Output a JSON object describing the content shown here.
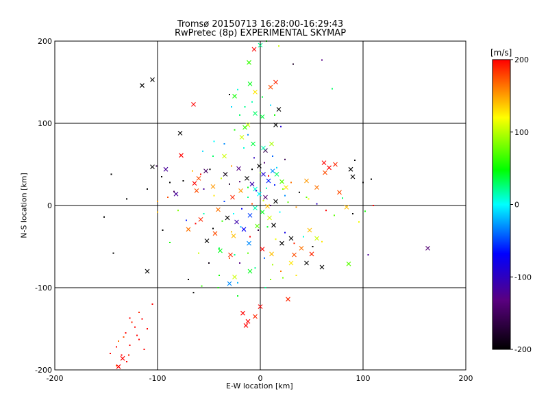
{
  "chart_data": {
    "type": "scatter",
    "title": "Tromsø 20150713 16:28:00-16:29:43",
    "subtitle": "RwPretec (8p) EXPERIMENTAL SKYMAP",
    "xlabel": "E-W location [km]",
    "ylabel": "N-S location [km]",
    "xlim": [
      -200,
      200
    ],
    "ylim": [
      -200,
      200
    ],
    "xticks": [
      -200,
      -100,
      0,
      100,
      200
    ],
    "yticks": [
      -200,
      -100,
      0,
      100,
      200
    ],
    "grid": true,
    "markers": [
      "x",
      "dot"
    ],
    "colorbar": {
      "label": "[m/s]",
      "range": [
        -200,
        200
      ],
      "ticks": [
        200,
        100,
        0,
        -100,
        -200
      ],
      "colormap": [
        "#000000",
        "#5a0080",
        "#0000ff",
        "#00ffff",
        "#00ff00",
        "#ffff00",
        "#ff0000"
      ]
    },
    "series": [
      {
        "values": [
          [
            -115,
            146,
            -200
          ],
          [
            -105,
            153,
            -200
          ],
          [
            -65,
            123,
            200
          ],
          [
            -78,
            88,
            -200
          ],
          [
            -105,
            47,
            -200
          ],
          [
            -62,
            18,
            180
          ],
          [
            -77,
            61,
            200
          ],
          [
            -82,
            14,
            -120
          ],
          [
            -53,
            42,
            -150
          ],
          [
            -92,
            44,
            -120
          ],
          [
            -60,
            33,
            180
          ],
          [
            -46,
            23,
            160
          ],
          [
            -64,
            27,
            200
          ],
          [
            -34,
            38,
            -190
          ],
          [
            -21,
            45,
            -130
          ],
          [
            -13,
            33,
            -200
          ],
          [
            -8,
            26,
            -110
          ],
          [
            -1,
            48,
            -200
          ],
          [
            3,
            38,
            -90
          ],
          [
            8,
            30,
            -60
          ],
          [
            12,
            42,
            -30
          ],
          [
            16,
            38,
            40
          ],
          [
            21,
            29,
            90
          ],
          [
            25,
            22,
            140
          ],
          [
            -5,
            20,
            10
          ],
          [
            -19,
            18,
            160
          ],
          [
            -27,
            10,
            190
          ],
          [
            -41,
            -5,
            170
          ],
          [
            -32,
            -15,
            -200
          ],
          [
            -23,
            -20,
            -110
          ],
          [
            -10,
            -12,
            -50
          ],
          [
            -5,
            -3,
            20
          ],
          [
            2,
            -8,
            60
          ],
          [
            9,
            -15,
            120
          ],
          [
            13,
            -24,
            -200
          ],
          [
            -16,
            -29,
            -70
          ],
          [
            -26,
            -37,
            150
          ],
          [
            -44,
            -34,
            180
          ],
          [
            -58,
            -17,
            190
          ],
          [
            -52,
            -43,
            -200
          ],
          [
            -70,
            -29,
            170
          ],
          [
            -39,
            -55,
            60
          ],
          [
            -29,
            -60,
            190
          ],
          [
            -11,
            -46,
            -30
          ],
          [
            2,
            -53,
            200
          ],
          [
            11,
            -59,
            150
          ],
          [
            21,
            -46,
            -200
          ],
          [
            33,
            -60,
            180
          ],
          [
            45,
            -70,
            -200
          ],
          [
            50,
            -59,
            190
          ],
          [
            60,
            -75,
            -200
          ],
          [
            40,
            -52,
            170
          ],
          [
            48,
            -30,
            150
          ],
          [
            30,
            -40,
            -200
          ],
          [
            55,
            -40,
            120
          ],
          [
            67,
            46,
            200
          ],
          [
            62,
            52,
            200
          ],
          [
            73,
            50,
            190
          ],
          [
            88,
            44,
            -200
          ],
          [
            90,
            35,
            -200
          ],
          [
            55,
            22,
            170
          ],
          [
            63,
            40,
            180
          ],
          [
            45,
            30,
            160
          ],
          [
            77,
            16,
            180
          ],
          [
            84,
            -2,
            150
          ],
          [
            86,
            -71,
            90
          ],
          [
            163,
            -52,
            -140
          ],
          [
            5,
            67,
            -160
          ],
          [
            18,
            117,
            -200
          ],
          [
            15,
            150,
            190
          ],
          [
            -10,
            148,
            60
          ],
          [
            10,
            144,
            180
          ],
          [
            -5,
            138,
            140
          ],
          [
            -25,
            133,
            70
          ],
          [
            -11,
            174,
            80
          ],
          [
            0,
            195,
            30
          ],
          [
            -6,
            190,
            200
          ],
          [
            -5,
            112,
            40
          ],
          [
            2,
            108,
            50
          ],
          [
            -12,
            98,
            120
          ],
          [
            -15,
            95,
            80
          ],
          [
            -18,
            83,
            120
          ],
          [
            -7,
            75,
            50
          ],
          [
            3,
            70,
            20
          ],
          [
            11,
            75,
            110
          ],
          [
            15,
            98,
            -200
          ],
          [
            -30,
            -95,
            -30
          ],
          [
            -17,
            -131,
            200
          ],
          [
            -12,
            -141,
            200
          ],
          [
            -14,
            -146,
            200
          ],
          [
            -5,
            -135,
            190
          ],
          [
            0,
            -123,
            200
          ],
          [
            27,
            -114,
            190
          ],
          [
            30,
            -70,
            140
          ],
          [
            -25,
            -87,
            120
          ],
          [
            -10,
            -80,
            60
          ],
          [
            -110,
            -80,
            -200
          ],
          [
            -134,
            -186,
            200
          ],
          [
            -138,
            -196,
            200
          ],
          [
            -35,
            60,
            120
          ],
          [
            -1,
            14,
            0
          ],
          [
            5,
            10,
            -140
          ],
          [
            7,
            -1,
            150
          ],
          [
            -3,
            -25,
            90
          ],
          [
            15,
            5,
            -200
          ]
        ]
      },
      {
        "values": [
          [
            -145,
            38,
            -200
          ],
          [
            -130,
            8,
            -200
          ],
          [
            -152,
            -14,
            -200
          ],
          [
            -143,
            -58,
            -200
          ],
          [
            -101,
            48,
            -160
          ],
          [
            -96,
            35,
            -200
          ],
          [
            -88,
            28,
            -200
          ],
          [
            -84,
            17,
            -150
          ],
          [
            -75,
            30,
            -200
          ],
          [
            -66,
            42,
            150
          ],
          [
            -58,
            38,
            200
          ],
          [
            -49,
            44,
            -200
          ],
          [
            -38,
            33,
            120
          ],
          [
            -30,
            26,
            -180
          ],
          [
            -20,
            29,
            -140
          ],
          [
            -12,
            22,
            60
          ],
          [
            -4,
            18,
            -90
          ],
          [
            6,
            21,
            20
          ],
          [
            14,
            25,
            -60
          ],
          [
            22,
            20,
            100
          ],
          [
            30,
            28,
            170
          ],
          [
            38,
            16,
            -200
          ],
          [
            47,
            8,
            130
          ],
          [
            55,
            2,
            -100
          ],
          [
            64,
            -6,
            200
          ],
          [
            72,
            -12,
            90
          ],
          [
            80,
            9,
            40
          ],
          [
            90,
            -10,
            -200
          ],
          [
            -80,
            -6,
            100
          ],
          [
            -72,
            -18,
            -60
          ],
          [
            -63,
            -22,
            200
          ],
          [
            -55,
            -10,
            20
          ],
          [
            -46,
            -28,
            -200
          ],
          [
            -37,
            -19,
            80
          ],
          [
            -28,
            -32,
            150
          ],
          [
            -19,
            -26,
            -20
          ],
          [
            -10,
            -38,
            200
          ],
          [
            -2,
            -30,
            -170
          ],
          [
            7,
            -26,
            60
          ],
          [
            15,
            -41,
            130
          ],
          [
            24,
            -33,
            -80
          ],
          [
            33,
            -46,
            190
          ],
          [
            42,
            -38,
            10
          ],
          [
            51,
            -50,
            -200
          ],
          [
            60,
            -44,
            140
          ],
          [
            -40,
            -52,
            50
          ],
          [
            -30,
            -64,
            180
          ],
          [
            -20,
            -70,
            -130
          ],
          [
            -12,
            -58,
            90
          ],
          [
            -5,
            -76,
            30
          ],
          [
            4,
            -64,
            -40
          ],
          [
            12,
            -72,
            110
          ],
          [
            20,
            -80,
            170
          ],
          [
            -50,
            -70,
            -190
          ],
          [
            -60,
            -58,
            120
          ],
          [
            -88,
            -45,
            70
          ],
          [
            -95,
            -30,
            -200
          ],
          [
            -100,
            -8,
            150
          ],
          [
            -110,
            20,
            -200
          ],
          [
            -70,
            -90,
            -200
          ],
          [
            -57,
            -98,
            80
          ],
          [
            -41,
            -100,
            70
          ],
          [
            -22,
            -94,
            -20
          ],
          [
            10,
            -90,
            100
          ],
          [
            -35,
            75,
            -30
          ],
          [
            -45,
            78,
            0
          ],
          [
            -25,
            92,
            70
          ],
          [
            -20,
            110,
            40
          ],
          [
            -15,
            120,
            30
          ],
          [
            -8,
            126,
            20
          ],
          [
            2,
            132,
            50
          ],
          [
            10,
            122,
            -10
          ],
          [
            14,
            110,
            70
          ],
          [
            20,
            96,
            -90
          ],
          [
            -28,
            120,
            -10
          ],
          [
            -22,
            141,
            10
          ],
          [
            -30,
            135,
            -200
          ],
          [
            70,
            142,
            40
          ],
          [
            60,
            177,
            -130
          ],
          [
            32,
            172,
            -180
          ],
          [
            18,
            194,
            120
          ],
          [
            6,
            200,
            70
          ],
          [
            -12,
            86,
            -30
          ],
          [
            -16,
            70,
            10
          ],
          [
            -6,
            58,
            -100
          ],
          [
            4,
            52,
            -140
          ],
          [
            12,
            60,
            -40
          ],
          [
            24,
            56,
            -160
          ],
          [
            -46,
            60,
            40
          ],
          [
            -56,
            66,
            -10
          ],
          [
            100,
            28,
            -200
          ],
          [
            108,
            32,
            -200
          ],
          [
            92,
            55,
            -200
          ],
          [
            110,
            0,
            200
          ],
          [
            96,
            -20,
            130
          ],
          [
            102,
            -7,
            70
          ],
          [
            105,
            -60,
            -120
          ],
          [
            -26,
            -10,
            0
          ],
          [
            -18,
            -4,
            -70
          ],
          [
            -8,
            2,
            180
          ],
          [
            3,
            6,
            120
          ],
          [
            10,
            0,
            -150
          ],
          [
            19,
            -8,
            0
          ],
          [
            27,
            4,
            90
          ],
          [
            35,
            -2,
            160
          ],
          [
            -35,
            5,
            -50
          ],
          [
            -45,
            12,
            140
          ],
          [
            -55,
            20,
            -120
          ],
          [
            -12,
            10,
            30
          ],
          [
            24,
            12,
            -30
          ],
          [
            8,
            36,
            200
          ],
          [
            0,
            40,
            110
          ],
          [
            -8,
            44,
            -200
          ],
          [
            16,
            46,
            -10
          ],
          [
            -28,
            48,
            160
          ],
          [
            -140,
            -172,
            200
          ],
          [
            -131,
            -155,
            200
          ],
          [
            -127,
            -170,
            200
          ],
          [
            -122,
            -148,
            200
          ],
          [
            -118,
            -163,
            200
          ],
          [
            -135,
            -182,
            200
          ],
          [
            -125,
            -142,
            190
          ],
          [
            -113,
            -175,
            200
          ],
          [
            -140,
            -195,
            180
          ],
          [
            -130,
            -190,
            200
          ],
          [
            -118,
            -130,
            190
          ],
          [
            -110,
            -150,
            200
          ],
          [
            -133,
            -160,
            180
          ],
          [
            -127,
            -137,
            200
          ],
          [
            -138,
            -165,
            170
          ],
          [
            -105,
            -120,
            200
          ],
          [
            -128,
            -182,
            190
          ],
          [
            -120,
            -158,
            200
          ],
          [
            -146,
            -180,
            200
          ],
          [
            -115,
            -138,
            200
          ],
          [
            -65,
            -106,
            -200
          ],
          [
            -22,
            -110,
            60
          ],
          [
            -40,
            -85,
            70
          ],
          [
            5,
            -100,
            30
          ],
          [
            22,
            -88,
            100
          ],
          [
            -25,
            -60,
            30
          ],
          [
            35,
            -85,
            140
          ],
          [
            45,
            10,
            90
          ],
          [
            -90,
            10,
            180
          ],
          [
            -100,
            5,
            160
          ]
        ]
      }
    ]
  }
}
